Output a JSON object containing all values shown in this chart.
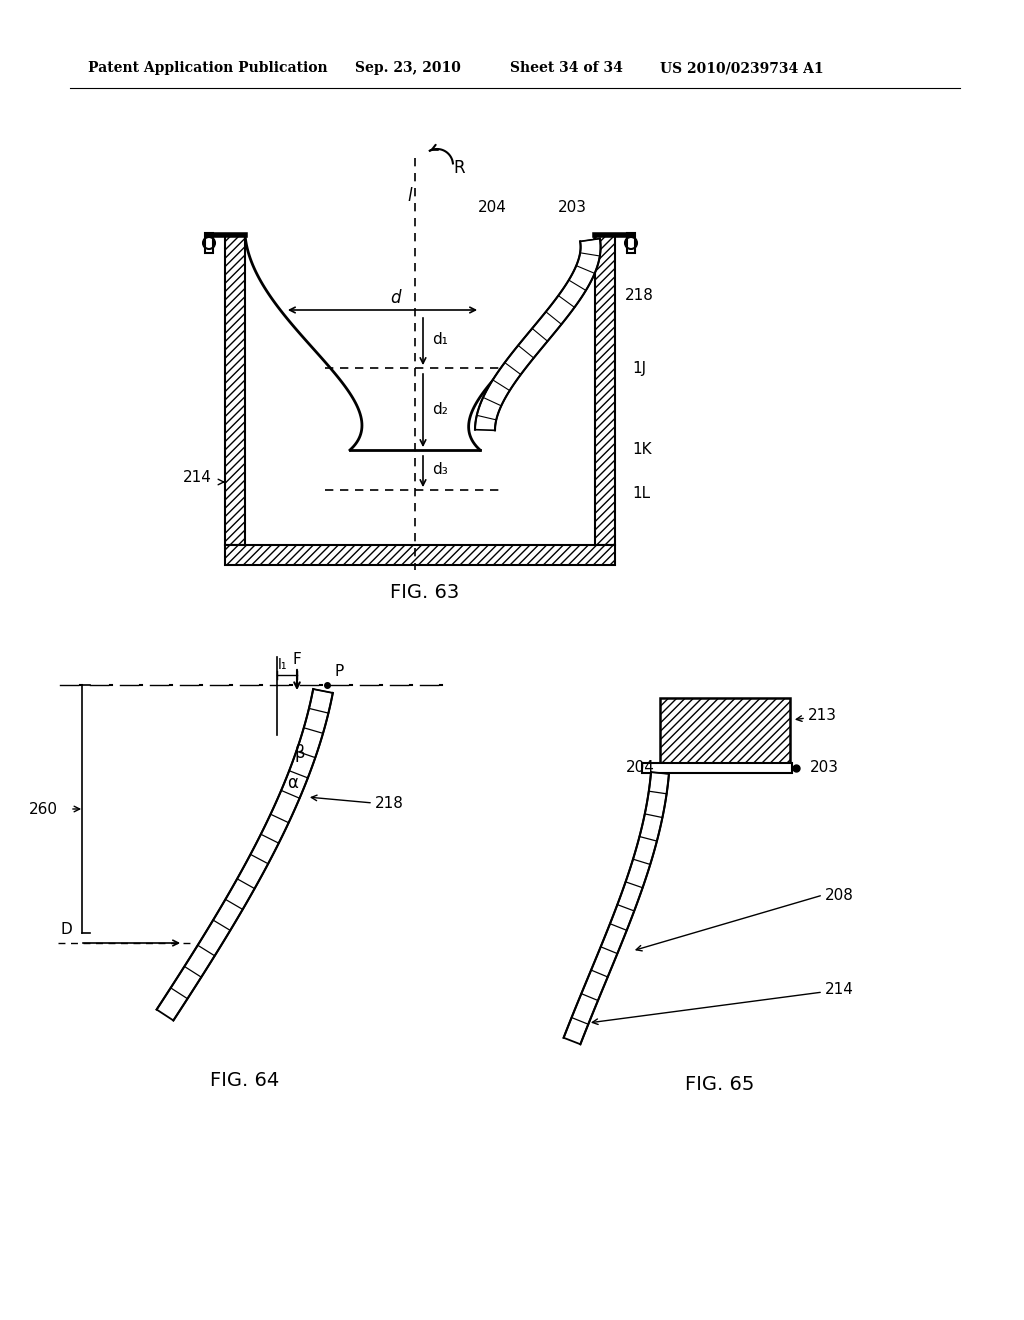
{
  "bg_color": "#ffffff",
  "line_color": "#000000",
  "header_text": "Patent Application Publication",
  "header_date": "Sep. 23, 2010",
  "header_sheet": "Sheet 34 of 34",
  "header_patent": "US 2010/0239734 A1",
  "fig63_label": "FIG. 63",
  "fig64_label": "FIG. 64",
  "fig65_label": "FIG. 65"
}
